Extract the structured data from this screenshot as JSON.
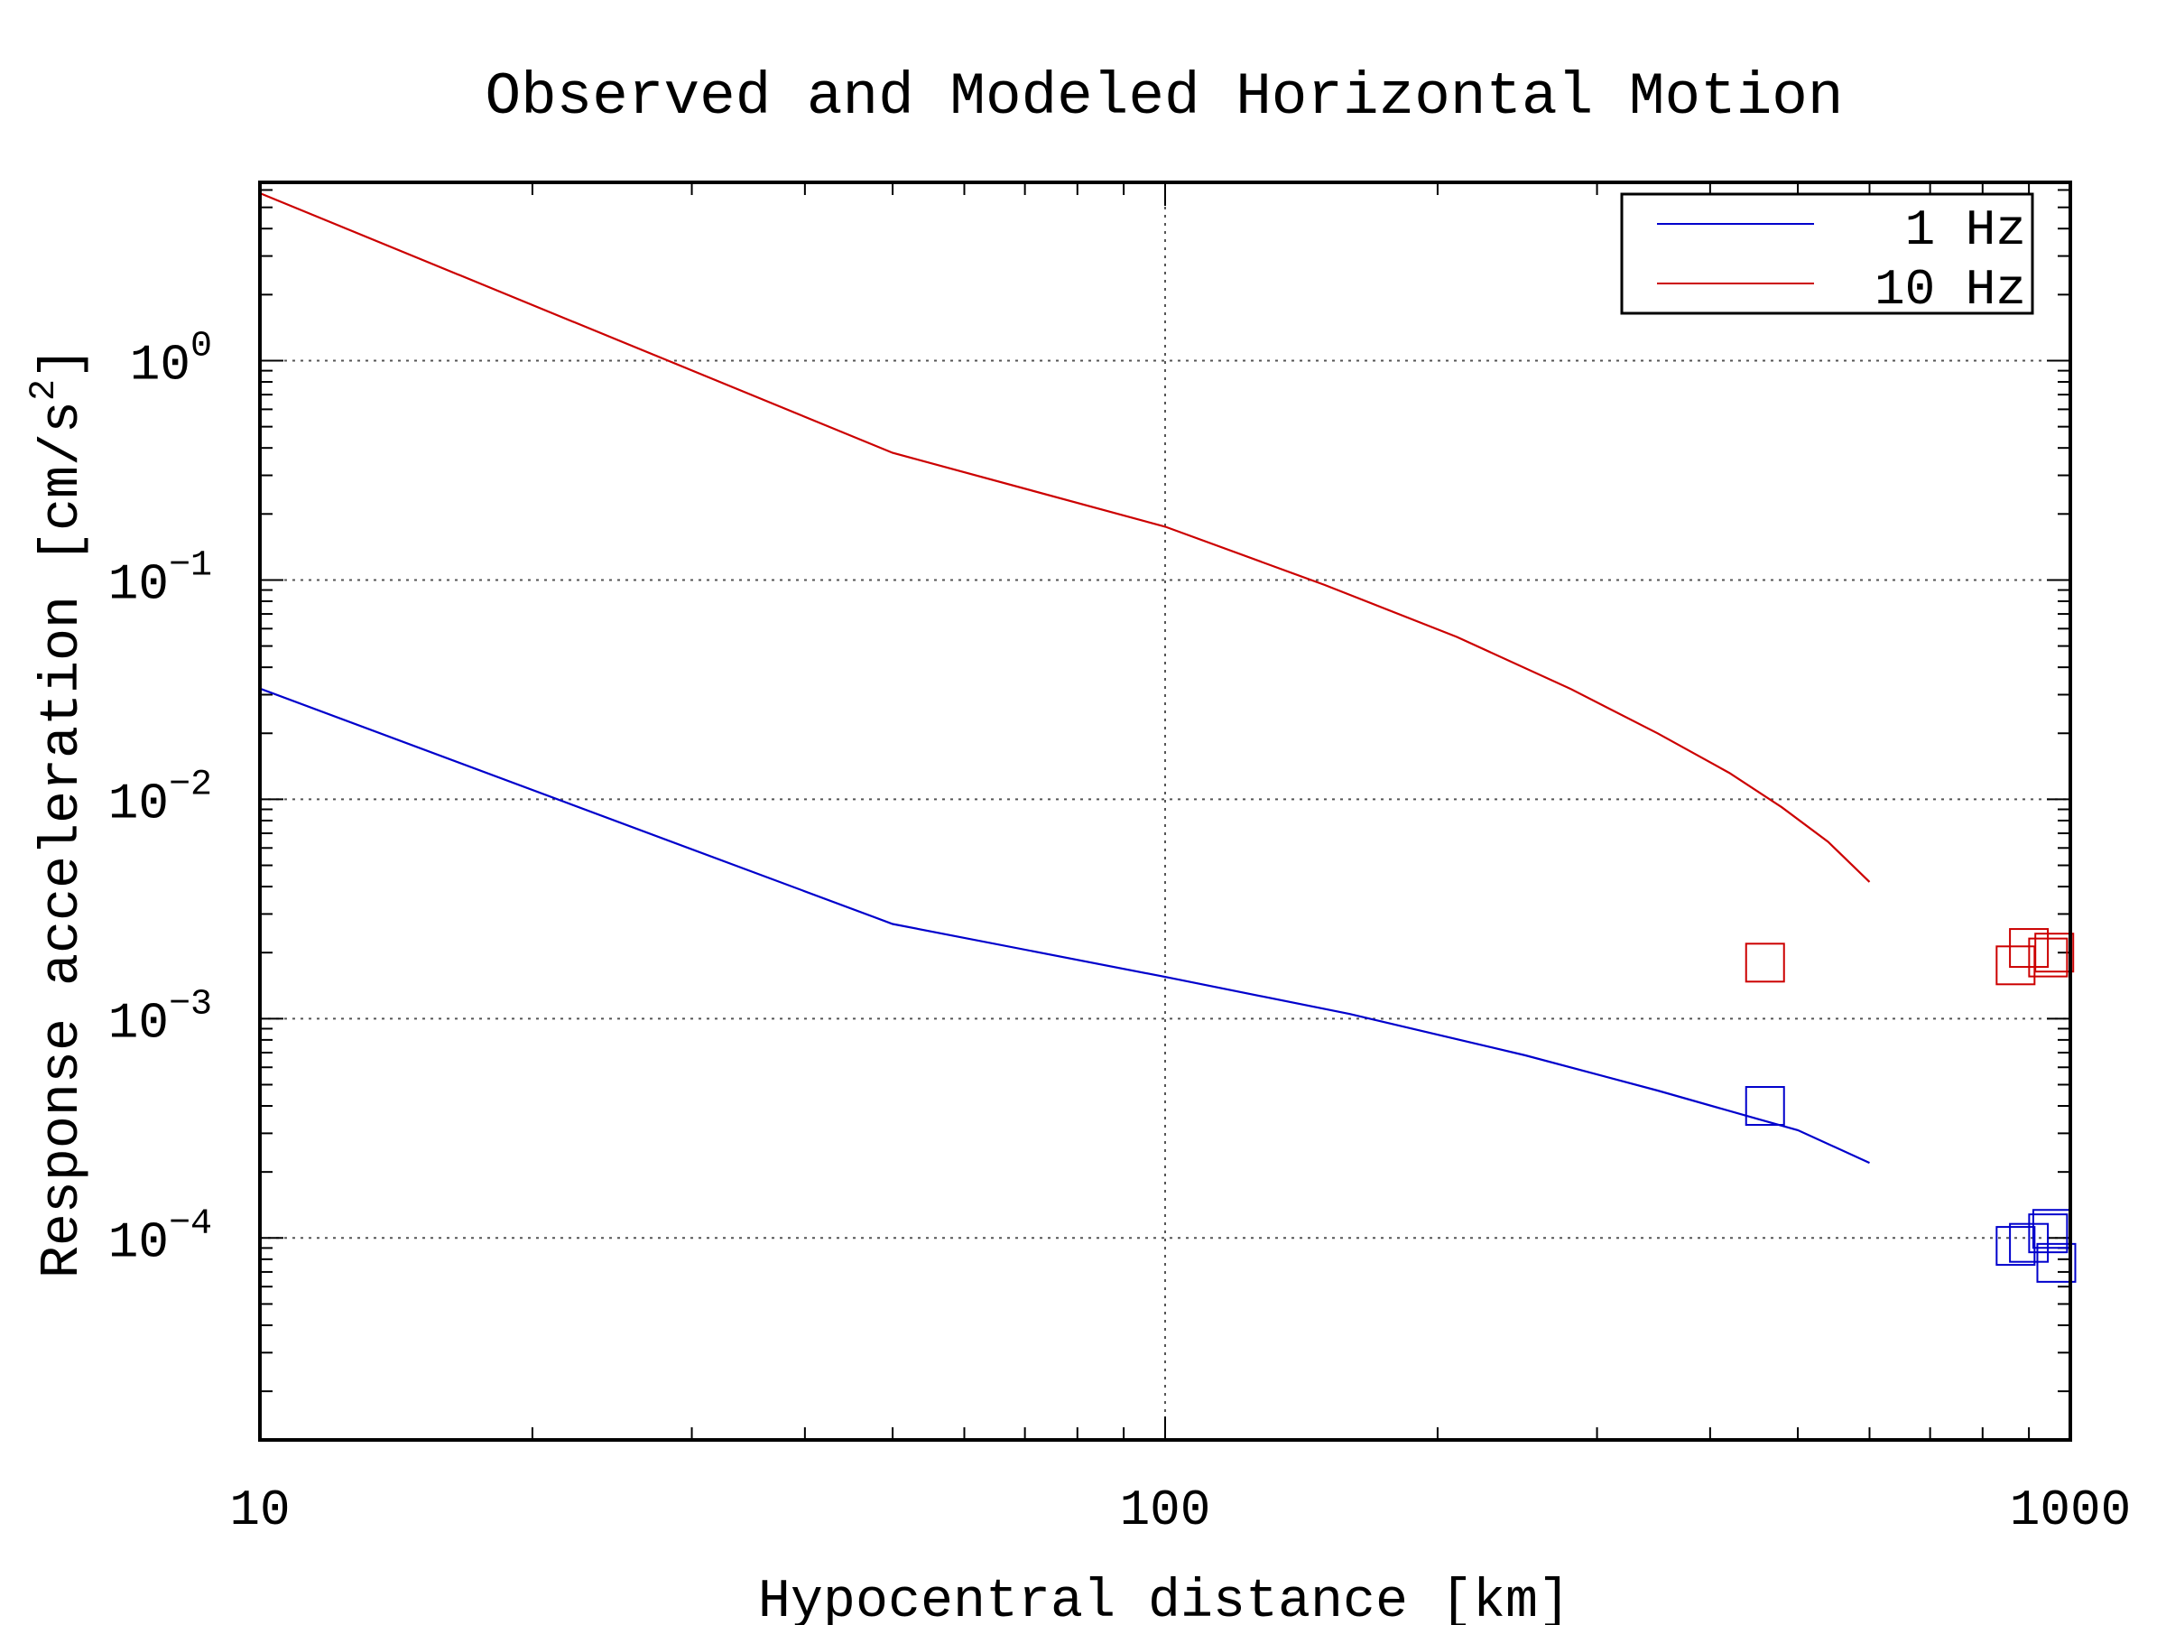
{
  "chart_data": {
    "type": "line",
    "title": "Observed and Modeled Horizontal Motion",
    "xlabel": "Hypocentral distance [km]",
    "ylabel": "Response acceleration [cm/s^2]",
    "x_scale": "log",
    "y_scale": "log",
    "xlim": [
      10,
      1000
    ],
    "ylim": [
      1.2e-05,
      6.5
    ],
    "x_ticks": [
      {
        "value": 10,
        "label": "10"
      },
      {
        "value": 100,
        "label": "100"
      },
      {
        "value": 1000,
        "label": "1000"
      }
    ],
    "y_ticks": [
      {
        "value": 1,
        "base": "10",
        "exp": "0"
      },
      {
        "value": 0.1,
        "base": "10",
        "exp": "−1"
      },
      {
        "value": 0.01,
        "base": "10",
        "exp": "−2"
      },
      {
        "value": 0.001,
        "base": "10",
        "exp": "−3"
      },
      {
        "value": 0.0001,
        "base": "10",
        "exp": "−4"
      }
    ],
    "grid": true,
    "legend_position": "top-right",
    "series": [
      {
        "name": "1 Hz",
        "color": "#0000cc",
        "x": [
          10,
          50,
          100,
          160,
          250,
          350,
          450,
          500,
          600
        ],
        "y": [
          0.032,
          0.0027,
          0.00155,
          0.00105,
          0.00068,
          0.00047,
          0.00035,
          0.00031,
          0.00022
        ]
      },
      {
        "name": "10 Hz",
        "color": "#cc0000",
        "x": [
          10,
          50,
          100,
          150,
          210,
          280,
          350,
          420,
          480,
          540,
          600
        ],
        "y": [
          5.8,
          0.38,
          0.175,
          0.095,
          0.055,
          0.032,
          0.02,
          0.0132,
          0.0092,
          0.0064,
          0.0042
        ]
      }
    ],
    "observed": [
      {
        "series": "1 Hz",
        "color": "#0000cc",
        "x": [
          460,
          870,
          900,
          945,
          955,
          965
        ],
        "y": [
          0.0004,
          9.2e-05,
          9.5e-05,
          0.000105,
          0.00011,
          7.7e-05
        ]
      },
      {
        "series": "10 Hz",
        "color": "#cc0000",
        "x": [
          460,
          870,
          900,
          945,
          960
        ],
        "y": [
          0.0018,
          0.00175,
          0.0021,
          0.0019,
          0.002
        ]
      }
    ]
  }
}
